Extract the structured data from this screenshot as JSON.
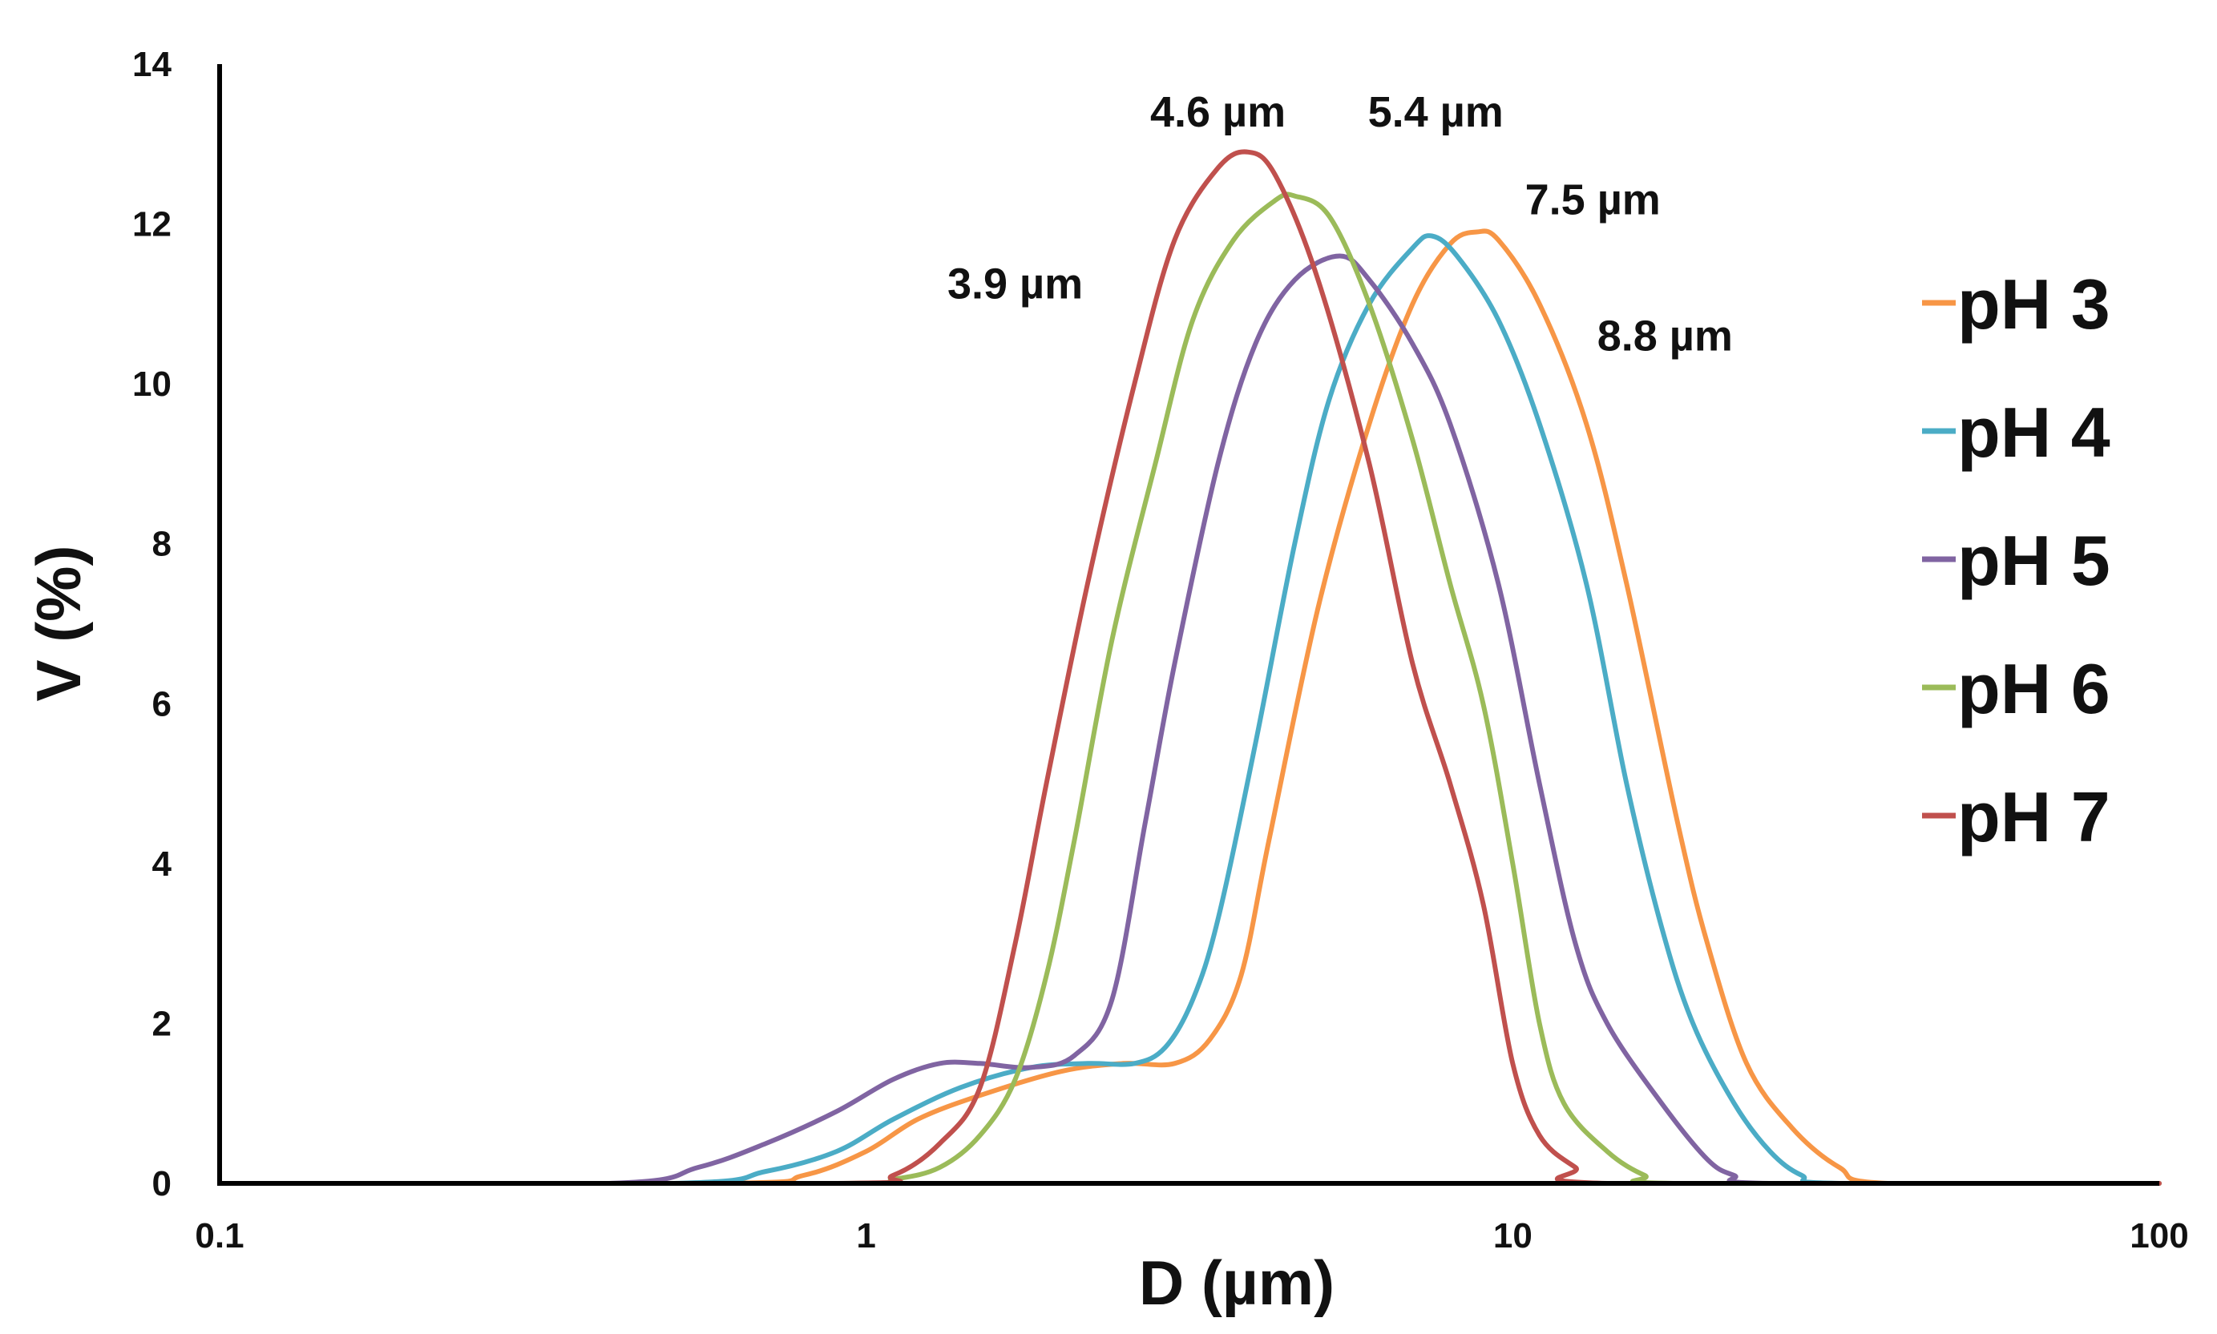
{
  "chart_data": {
    "type": "line",
    "title": "",
    "xlabel": "D (µm)",
    "ylabel": "V (%)",
    "xscale": "log",
    "xlim": [
      0.1,
      100
    ],
    "ylim": [
      0,
      14
    ],
    "x_ticks": [
      {
        "value": 0.1,
        "label": "0.1"
      },
      {
        "value": 1,
        "label": "1"
      },
      {
        "value": 10,
        "label": "10"
      },
      {
        "value": 100,
        "label": "100"
      }
    ],
    "y_ticks": [
      {
        "value": 0,
        "label": "0"
      },
      {
        "value": 2,
        "label": "2"
      },
      {
        "value": 4,
        "label": "4"
      },
      {
        "value": 6,
        "label": "6"
      },
      {
        "value": 8,
        "label": "8"
      },
      {
        "value": 10,
        "label": "10"
      },
      {
        "value": 12,
        "label": "12"
      },
      {
        "value": 14,
        "label": "14"
      }
    ],
    "legend_position": "right",
    "series": [
      {
        "name": "pH 3",
        "color": "#F79646",
        "points": [
          [
            0.1,
            0
          ],
          [
            0.6,
            0
          ],
          [
            0.8,
            0.1
          ],
          [
            1.0,
            0.4
          ],
          [
            1.2,
            0.8
          ],
          [
            1.5,
            1.1
          ],
          [
            2.0,
            1.4
          ],
          [
            2.5,
            1.5
          ],
          [
            3.0,
            1.5
          ],
          [
            3.4,
            1.8
          ],
          [
            3.8,
            2.6
          ],
          [
            4.2,
            4.3
          ],
          [
            5.0,
            7.2
          ],
          [
            6.0,
            9.5
          ],
          [
            7.0,
            11.0
          ],
          [
            8.0,
            11.75
          ],
          [
            8.8,
            11.9
          ],
          [
            9.5,
            11.8
          ],
          [
            11.0,
            11.0
          ],
          [
            13.0,
            9.5
          ],
          [
            15.0,
            7.5
          ],
          [
            18.0,
            4.5
          ],
          [
            20.0,
            3.0
          ],
          [
            23.0,
            1.5
          ],
          [
            27.0,
            0.7
          ],
          [
            32.0,
            0.2
          ],
          [
            38.0,
            0
          ],
          [
            100,
            0
          ]
        ]
      },
      {
        "name": "pH 4",
        "color": "#4BACC6",
        "points": [
          [
            0.1,
            0
          ],
          [
            0.5,
            0
          ],
          [
            0.7,
            0.15
          ],
          [
            0.9,
            0.4
          ],
          [
            1.1,
            0.8
          ],
          [
            1.4,
            1.2
          ],
          [
            1.8,
            1.45
          ],
          [
            2.2,
            1.5
          ],
          [
            2.6,
            1.5
          ],
          [
            2.9,
            1.7
          ],
          [
            3.2,
            2.3
          ],
          [
            3.5,
            3.3
          ],
          [
            4.0,
            5.5
          ],
          [
            4.6,
            8.0
          ],
          [
            5.2,
            9.8
          ],
          [
            6.0,
            11.0
          ],
          [
            7.0,
            11.7
          ],
          [
            7.5,
            11.85
          ],
          [
            8.2,
            11.6
          ],
          [
            9.5,
            10.8
          ],
          [
            11.0,
            9.5
          ],
          [
            13.0,
            7.5
          ],
          [
            15.0,
            5.0
          ],
          [
            17.0,
            3.2
          ],
          [
            19.0,
            2.0
          ],
          [
            22.0,
            1.0
          ],
          [
            25.0,
            0.4
          ],
          [
            28.0,
            0.1
          ],
          [
            32.0,
            0
          ],
          [
            100,
            0
          ]
        ]
      },
      {
        "name": "pH 5",
        "color": "#8064A2",
        "points": [
          [
            0.1,
            0
          ],
          [
            0.4,
            0
          ],
          [
            0.55,
            0.2
          ],
          [
            0.7,
            0.5
          ],
          [
            0.9,
            0.9
          ],
          [
            1.1,
            1.3
          ],
          [
            1.3,
            1.5
          ],
          [
            1.5,
            1.5
          ],
          [
            1.8,
            1.45
          ],
          [
            2.1,
            1.6
          ],
          [
            2.4,
            2.3
          ],
          [
            2.7,
            4.5
          ],
          [
            3.0,
            6.5
          ],
          [
            3.5,
            9.0
          ],
          [
            4.0,
            10.5
          ],
          [
            4.6,
            11.3
          ],
          [
            5.4,
            11.6
          ],
          [
            6.0,
            11.3
          ],
          [
            7.0,
            10.5
          ],
          [
            8.0,
            9.5
          ],
          [
            9.5,
            7.5
          ],
          [
            11.0,
            5.0
          ],
          [
            12.5,
            3.0
          ],
          [
            14.0,
            2.0
          ],
          [
            17.0,
            1.0
          ],
          [
            20.0,
            0.3
          ],
          [
            22.0,
            0.1
          ],
          [
            25.0,
            0
          ],
          [
            100,
            0
          ]
        ]
      },
      {
        "name": "pH 6",
        "color": "#9BBB59",
        "points": [
          [
            0.1,
            0
          ],
          [
            0.9,
            0
          ],
          [
            1.1,
            0.05
          ],
          [
            1.3,
            0.2
          ],
          [
            1.5,
            0.6
          ],
          [
            1.7,
            1.3
          ],
          [
            1.9,
            2.6
          ],
          [
            2.1,
            4.3
          ],
          [
            2.4,
            6.8
          ],
          [
            2.8,
            9.0
          ],
          [
            3.2,
            10.8
          ],
          [
            3.7,
            11.8
          ],
          [
            4.3,
            12.3
          ],
          [
            4.6,
            12.35
          ],
          [
            5.2,
            12.1
          ],
          [
            6.0,
            11.0
          ],
          [
            7.0,
            9.3
          ],
          [
            8.0,
            7.5
          ],
          [
            9.0,
            6.0
          ],
          [
            10.0,
            4.0
          ],
          [
            11.0,
            2.0
          ],
          [
            12.0,
            1.0
          ],
          [
            14.0,
            0.4
          ],
          [
            16.0,
            0.1
          ],
          [
            18.0,
            0
          ],
          [
            100,
            0
          ]
        ]
      },
      {
        "name": "pH 7",
        "color": "#C0504D",
        "points": [
          [
            0.1,
            0
          ],
          [
            0.9,
            0
          ],
          [
            1.1,
            0.1
          ],
          [
            1.3,
            0.5
          ],
          [
            1.5,
            1.2
          ],
          [
            1.7,
            3.0
          ],
          [
            1.9,
            5.0
          ],
          [
            2.2,
            7.5
          ],
          [
            2.6,
            10.0
          ],
          [
            3.0,
            11.8
          ],
          [
            3.5,
            12.7
          ],
          [
            3.9,
            12.9
          ],
          [
            4.3,
            12.6
          ],
          [
            5.0,
            11.3
          ],
          [
            6.0,
            9.0
          ],
          [
            7.0,
            6.5
          ],
          [
            8.0,
            5.0
          ],
          [
            9.0,
            3.5
          ],
          [
            10.0,
            1.5
          ],
          [
            11.0,
            0.6
          ],
          [
            12.5,
            0.2
          ],
          [
            14.0,
            0
          ],
          [
            100,
            0
          ]
        ]
      }
    ],
    "annotations": [
      {
        "text": "4.6 µm",
        "x": 3.5,
        "y": 13.4
      },
      {
        "text": "5.4 µm",
        "x": 7.6,
        "y": 13.4
      },
      {
        "text": "7.5 µm",
        "x": 13.3,
        "y": 12.3
      },
      {
        "text": "3.9 µm",
        "x": 1.7,
        "y": 11.25
      },
      {
        "text": "8.8 µm",
        "x": 17.2,
        "y": 10.6
      }
    ]
  }
}
